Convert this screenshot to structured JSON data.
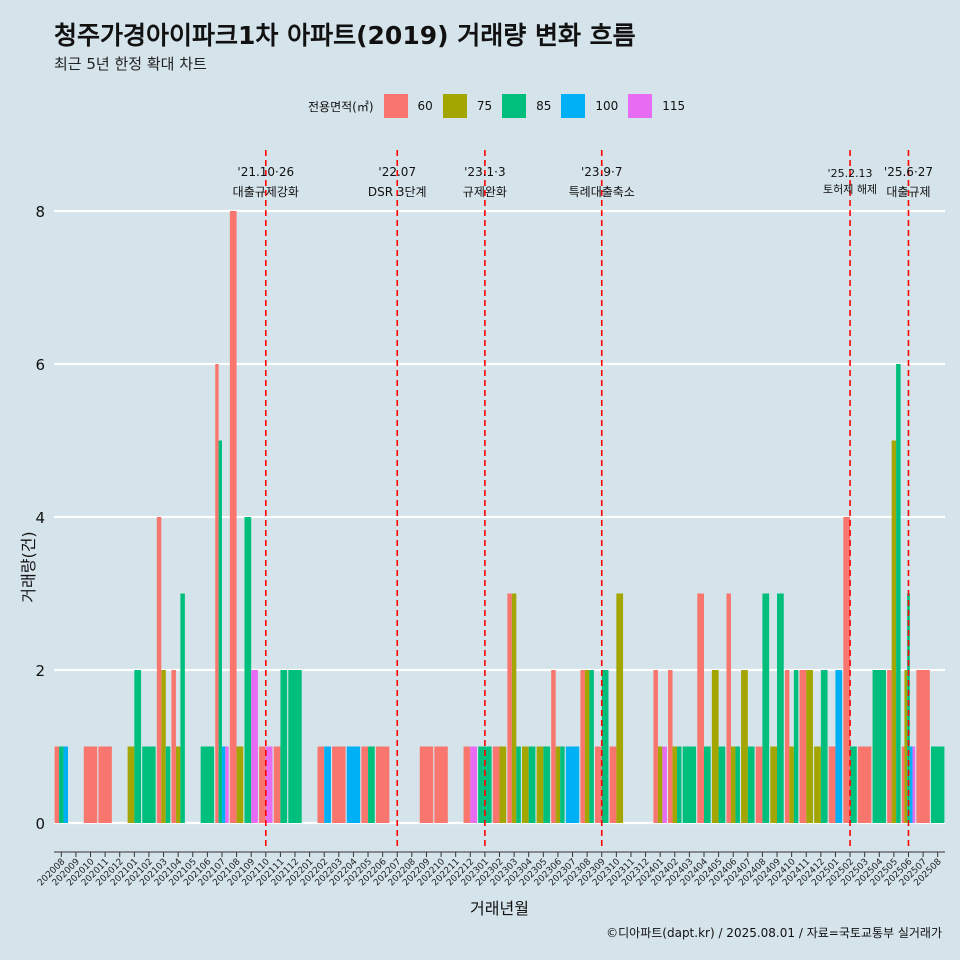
{
  "header": {
    "title": "청주가경아이파크1차 아파트(2019) 거래량 변화 흐름",
    "subtitle": "최근 5년 한정 확대 차트"
  },
  "legend": {
    "title": "전용면적(㎡)",
    "items": [
      {
        "label": "60",
        "color": "#F8766D"
      },
      {
        "label": "75",
        "color": "#A3A500"
      },
      {
        "label": "85",
        "color": "#00BF7D"
      },
      {
        "label": "100",
        "color": "#00B0F6"
      },
      {
        "label": "115",
        "color": "#E76BF3"
      }
    ]
  },
  "caption": "©디아파트(dapt.kr) / 2025.08.01 / 자료=국토교통부 실거래가",
  "chart_data": {
    "type": "bar",
    "xlabel": "거래년월",
    "ylabel": "거래량(건)",
    "ylim": [
      0,
      8
    ],
    "yticks": [
      0,
      2,
      4,
      6,
      8
    ],
    "grid": true,
    "legend_position": "top",
    "categories": [
      "202008",
      "202009",
      "202010",
      "202011",
      "202012",
      "202101",
      "202102",
      "202103",
      "202104",
      "202105",
      "202106",
      "202107",
      "202108",
      "202109",
      "202110",
      "202111",
      "202112",
      "202201",
      "202202",
      "202203",
      "202204",
      "202205",
      "202206",
      "202207",
      "202208",
      "202209",
      "202210",
      "202211",
      "202212",
      "202301",
      "202302",
      "202303",
      "202304",
      "202305",
      "202306",
      "202307",
      "202308",
      "202309",
      "202310",
      "202311",
      "202312",
      "202401",
      "202402",
      "202403",
      "202404",
      "202405",
      "202406",
      "202407",
      "202408",
      "202409",
      "202410",
      "202411",
      "202412",
      "202501",
      "202502",
      "202503",
      "202504",
      "202505",
      "202506",
      "202507",
      "202508"
    ],
    "series": [
      {
        "name": "60",
        "values": [
          1,
          0,
          1,
          1,
          0,
          0,
          0,
          4,
          2,
          0,
          0,
          6,
          8,
          0,
          1,
          1,
          0,
          0,
          1,
          1,
          0,
          1,
          1,
          0,
          0,
          1,
          1,
          0,
          1,
          0,
          1,
          3,
          0,
          0,
          2,
          0,
          2,
          1,
          1,
          0,
          0,
          2,
          2,
          0,
          3,
          0,
          3,
          0,
          1,
          0,
          2,
          2,
          0,
          1,
          4,
          1,
          0,
          2,
          1,
          2,
          0
        ]
      },
      {
        "name": "75",
        "values": [
          0,
          0,
          0,
          0,
          0,
          1,
          0,
          2,
          1,
          0,
          0,
          0,
          1,
          0,
          0,
          0,
          0,
          0,
          0,
          0,
          0,
          0,
          0,
          0,
          0,
          0,
          0,
          0,
          0,
          0,
          1,
          3,
          1,
          1,
          1,
          0,
          2,
          0,
          3,
          0,
          0,
          1,
          1,
          0,
          0,
          2,
          1,
          2,
          0,
          1,
          1,
          2,
          1,
          0,
          0,
          0,
          0,
          5,
          2,
          0,
          0
        ]
      },
      {
        "name": "85",
        "values": [
          1,
          0,
          0,
          0,
          0,
          2,
          1,
          1,
          3,
          0,
          1,
          5,
          0,
          4,
          0,
          2,
          2,
          0,
          0,
          0,
          0,
          1,
          0,
          0,
          0,
          0,
          0,
          0,
          0,
          1,
          0,
          1,
          1,
          1,
          1,
          0,
          2,
          2,
          0,
          0,
          0,
          0,
          1,
          1,
          1,
          1,
          1,
          1,
          3,
          3,
          2,
          0,
          2,
          0,
          1,
          0,
          2,
          6,
          3,
          0,
          1
        ]
      },
      {
        "name": "100",
        "values": [
          1,
          0,
          0,
          0,
          0,
          0,
          0,
          0,
          0,
          0,
          0,
          1,
          0,
          0,
          0,
          0,
          0,
          0,
          1,
          0,
          1,
          0,
          0,
          0,
          0,
          0,
          0,
          0,
          0,
          0,
          0,
          0,
          0,
          0,
          0,
          1,
          0,
          0,
          0,
          0,
          0,
          0,
          0,
          0,
          0,
          0,
          0,
          0,
          0,
          0,
          0,
          0,
          0,
          2,
          0,
          0,
          0,
          0,
          1,
          0,
          0
        ]
      },
      {
        "name": "115",
        "values": [
          0,
          0,
          0,
          0,
          0,
          0,
          0,
          0,
          0,
          0,
          0,
          1,
          0,
          2,
          1,
          0,
          0,
          0,
          0,
          0,
          0,
          0,
          0,
          0,
          0,
          0,
          0,
          0,
          1,
          0,
          0,
          0,
          0,
          0,
          0,
          0,
          0,
          0,
          0,
          0,
          0,
          1,
          0,
          0,
          0,
          0,
          0,
          0,
          0,
          0,
          0,
          0,
          0,
          0,
          0,
          0,
          0,
          0,
          1,
          0,
          0
        ]
      }
    ],
    "annotations": [
      {
        "x": "202110",
        "line1": "'21.10·26",
        "line2": "대출규제강화"
      },
      {
        "x": "202207",
        "line1": "'22.07",
        "line2": "DSR 3단계"
      },
      {
        "x": "202301",
        "line1": "'23.1·3",
        "line2": "규제완화"
      },
      {
        "x": "202309",
        "line1": "'23.9·7",
        "line2": "특례대출축소"
      },
      {
        "x": "202502",
        "line1": "'25.2.13",
        "line2": "토허제 해제"
      },
      {
        "x": "202506",
        "line1": "'25.6·27",
        "line2": "대출규제"
      }
    ]
  }
}
